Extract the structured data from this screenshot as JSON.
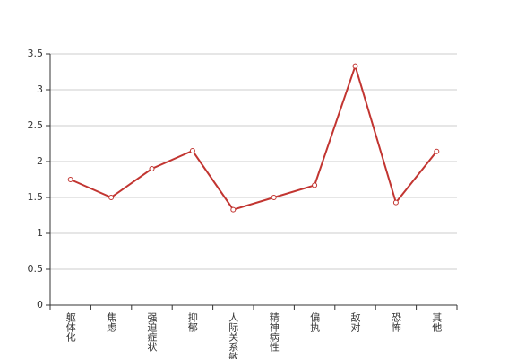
{
  "chart_data": {
    "type": "line",
    "categories": [
      "躯体化",
      "焦虑",
      "强迫症状",
      "抑郁",
      "人际关系敏感",
      "精神病性",
      "偏执",
      "敌对",
      "恐怖",
      "其他"
    ],
    "series": [
      {
        "color": "#c23531",
        "values": [
          1.75,
          1.5,
          1.9,
          2.15,
          1.33,
          1.5,
          1.67,
          3.33,
          1.43,
          2.14
        ]
      }
    ],
    "ylim": [
      0,
      3.5
    ],
    "yticks": [
      0,
      0.5,
      1,
      1.5,
      2,
      2.5,
      3,
      3.5
    ],
    "grid": true
  }
}
